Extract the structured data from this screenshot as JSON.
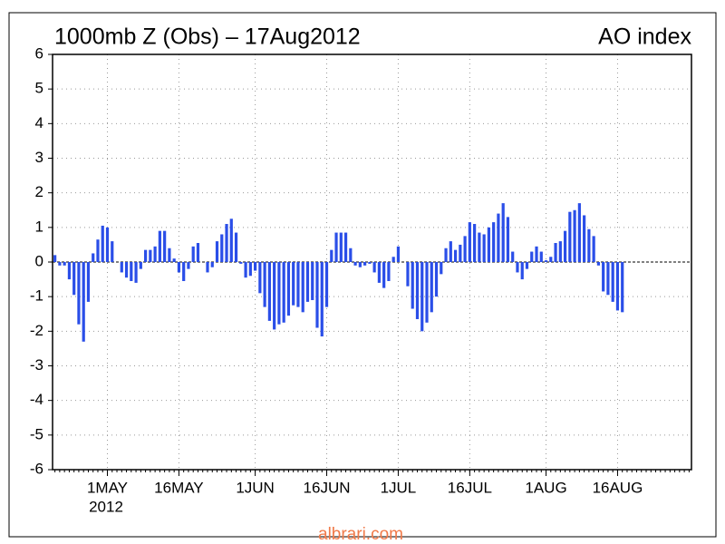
{
  "chart_data": {
    "type": "bar",
    "title": "1000mb Z (Obs) – 17Aug2012",
    "subtitle": "AO index",
    "year_label": "2012",
    "watermark": "albrari.com",
    "color": "#2a4ee8",
    "grid": true,
    "categories": [
      null,
      null,
      null,
      null,
      null,
      null,
      null,
      null,
      null,
      null,
      null,
      "1MAY",
      null,
      null,
      null,
      null,
      null,
      null,
      null,
      null,
      null,
      null,
      null,
      null,
      null,
      null,
      "16MAY",
      null,
      null,
      null,
      null,
      null,
      null,
      null,
      null,
      null,
      null,
      null,
      null,
      null,
      null,
      null,
      "1JUN",
      null,
      null,
      null,
      null,
      null,
      null,
      null,
      null,
      null,
      null,
      null,
      null,
      null,
      null,
      "16JUN",
      null,
      null,
      null,
      null,
      null,
      null,
      null,
      null,
      null,
      null,
      null,
      null,
      null,
      null,
      "1JUL",
      null,
      null,
      null,
      null,
      null,
      null,
      null,
      null,
      null,
      null,
      null,
      null,
      null,
      null,
      "16JUL",
      null,
      null,
      null,
      null,
      null,
      null,
      null,
      null,
      null,
      null,
      null,
      null,
      null,
      null,
      null,
      "1AUG",
      null,
      null,
      null,
      null,
      null,
      null,
      null,
      null,
      null,
      null,
      null,
      null,
      null,
      null,
      "16AUG",
      null,
      null,
      null,
      null,
      null,
      null,
      null,
      null,
      null,
      null,
      null,
      null,
      null,
      null,
      null
    ],
    "values": [
      0.2,
      -0.1,
      -0.1,
      -0.5,
      -0.95,
      -1.8,
      -2.3,
      -1.15,
      0.25,
      0.65,
      1.05,
      1.0,
      0.6,
      0.0,
      -0.3,
      -0.45,
      -0.55,
      -0.6,
      -0.2,
      0.35,
      0.35,
      0.45,
      0.9,
      0.9,
      0.4,
      0.1,
      -0.3,
      -0.55,
      -0.2,
      0.45,
      0.55,
      0.0,
      -0.3,
      -0.15,
      0.6,
      0.8,
      1.1,
      1.25,
      0.85,
      -0.05,
      -0.45,
      -0.4,
      -0.25,
      -0.9,
      -1.3,
      -1.7,
      -1.95,
      -1.8,
      -1.75,
      -1.55,
      -1.25,
      -1.3,
      -1.45,
      -1.15,
      -1.1,
      -1.9,
      -2.15,
      -1.3,
      0.35,
      0.85,
      0.85,
      0.85,
      0.4,
      -0.1,
      -0.15,
      -0.1,
      -0.05,
      -0.3,
      -0.6,
      -0.75,
      -0.55,
      0.15,
      0.45,
      0.0,
      -0.7,
      -1.35,
      -1.65,
      -2.0,
      -1.75,
      -1.45,
      -1.0,
      -0.35,
      0.4,
      0.6,
      0.35,
      0.5,
      0.75,
      1.15,
      1.1,
      0.85,
      0.8,
      1.0,
      1.15,
      1.4,
      1.7,
      1.3,
      0.3,
      -0.3,
      -0.5,
      -0.2,
      0.3,
      0.45,
      0.3,
      0.05,
      0.15,
      0.55,
      0.6,
      0.9,
      1.45,
      1.5,
      1.7,
      1.35,
      0.95,
      0.75,
      -0.1,
      -0.85,
      -0.95,
      -1.15,
      -1.4,
      -1.45,
      null,
      null,
      null,
      null,
      null,
      null,
      null,
      null,
      null,
      null,
      null,
      null,
      null,
      null
    ],
    "ylim": [
      -6,
      6
    ],
    "yticks": [
      -6,
      -5,
      -4,
      -3,
      -2,
      -1,
      0,
      1,
      2,
      3,
      4,
      5,
      6
    ]
  }
}
